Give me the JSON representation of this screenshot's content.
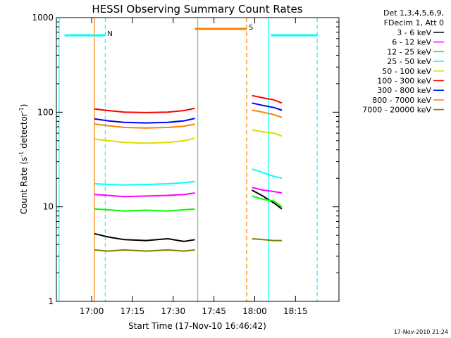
{
  "chart_data": {
    "type": "line",
    "title": "HESSI Observing Summary Count Rates",
    "xlabel": "Start Time (17-Nov-10 16:46:42)",
    "ylabel_main": "Count Rate (s",
    "ylabel_sup1": "-1",
    "ylabel_mid": " detector",
    "ylabel_sup2": "-1",
    "ylabel_end": ")",
    "y_scale": "log",
    "ylim": [
      1,
      1000
    ],
    "x_ticks": [
      "17:00",
      "17:15",
      "17:30",
      "17:45",
      "18:00",
      "18:15"
    ],
    "y_ticks": [
      "1",
      "10",
      "100",
      "1000"
    ],
    "legend_header": [
      "Det 1,3,4,5,6,9,",
      "FDecim 1, Att 0"
    ],
    "legend_position": "outside-right",
    "series": [
      {
        "name": "3 - 6 keV",
        "color": "#000000",
        "segments": [
          [
            5.2,
            4.8,
            4.5,
            4.4,
            4.6,
            4.3,
            4.5
          ],
          [
            15,
            13,
            11,
            9.5
          ]
        ]
      },
      {
        "name": "6 - 12 keV",
        "color": "#ff00ff",
        "segments": [
          [
            13.5,
            13.2,
            12.8,
            13.0,
            13.2,
            13.5,
            14.0
          ],
          [
            16,
            15,
            14.5,
            14
          ]
        ]
      },
      {
        "name": "12 - 25 keV",
        "color": "#00ff00",
        "segments": [
          [
            9.5,
            9.3,
            9.0,
            9.2,
            9.0,
            9.3,
            9.5
          ],
          [
            13,
            12,
            11.5,
            10
          ]
        ]
      },
      {
        "name": "25 - 50 keV",
        "color": "#00ffff",
        "segments": [
          [
            17.5,
            17.2,
            17.0,
            17.2,
            17.5,
            18.0,
            18.5
          ],
          [
            25,
            23,
            21,
            20
          ]
        ]
      },
      {
        "name": "50 - 100 keV",
        "color": "#dddd00",
        "segments": [
          [
            52,
            50,
            48,
            47,
            48,
            50,
            53
          ],
          [
            65,
            62,
            60,
            56
          ]
        ]
      },
      {
        "name": "100 - 300 keV",
        "color": "#ff0000",
        "segments": [
          [
            108,
            104,
            100,
            99,
            100,
            104,
            110
          ],
          [
            150,
            142,
            135,
            125
          ]
        ]
      },
      {
        "name": "300 - 800 keV",
        "color": "#0000ff",
        "segments": [
          [
            85,
            81,
            78,
            77,
            78,
            81,
            86
          ],
          [
            125,
            118,
            112,
            105
          ]
        ]
      },
      {
        "name": "800 - 7000 keV",
        "color": "#ff8000",
        "segments": [
          [
            75,
            72,
            69,
            68,
            69,
            71,
            75
          ],
          [
            105,
            100,
            94,
            88
          ]
        ]
      },
      {
        "name": "7000 - 20000 keV",
        "color": "#808000",
        "segments": [
          [
            3.5,
            3.4,
            3.5,
            3.4,
            3.5,
            3.4,
            3.5
          ],
          [
            4.6,
            4.5,
            4.4,
            4.4
          ]
        ]
      }
    ],
    "segment_times": [
      [
        "17:01",
        "17:06",
        "17:12",
        "17:20",
        "17:28",
        "17:34",
        "17:38"
      ],
      [
        "17:59",
        "18:03",
        "18:07",
        "18:10"
      ]
    ],
    "flags": [
      {
        "label": "N",
        "color": "#00ffff",
        "level": 650,
        "start": "16:50",
        "end": "17:05"
      },
      {
        "label": "",
        "color": "#00ffff",
        "level": 650,
        "start": "18:06",
        "end": "18:23"
      },
      {
        "label": "S",
        "color": "#ff8000",
        "level": 760,
        "start": "17:38",
        "end": "17:57"
      }
    ],
    "markers": [
      {
        "color": "#00ffff",
        "style": "solid",
        "time": "16:48"
      },
      {
        "color": "#00ffff",
        "style": "dashed",
        "time": "17:05"
      },
      {
        "color": "#ff8000",
        "style": "solid",
        "time": "17:01"
      },
      {
        "color": "#ff8000",
        "style": "solid",
        "time": "17:39"
      },
      {
        "color": "#00ffff",
        "style": "solid",
        "time": "17:39"
      },
      {
        "color": "#ff8000",
        "style": "dashed",
        "time": "17:57"
      },
      {
        "color": "#00ffff",
        "style": "solid",
        "time": "18:05"
      },
      {
        "color": "#00ffff",
        "style": "dashed",
        "time": "18:23"
      }
    ],
    "date_stamp": "17-Nov-2010 21:24"
  }
}
